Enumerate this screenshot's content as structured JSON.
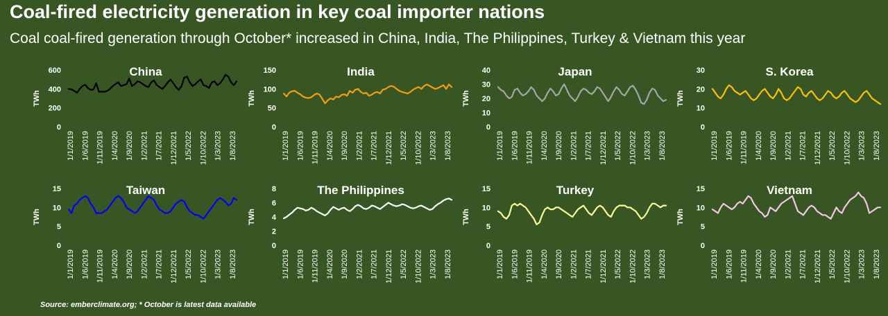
{
  "header": {
    "title": "Coal-fired electricity generation in key coal importer nations",
    "subtitle": "Coal coal-fired generation through October* increased in China, India, The Philippines, Turkey & Vietnam this year"
  },
  "footer": {
    "source": "Source: emberclimate.org; * October is latest data available"
  },
  "chart_data": [
    {
      "type": "line",
      "title": "China",
      "ylabel": "TWh",
      "color": "#000000",
      "ylim": [
        0,
        600
      ],
      "yticks": [
        0,
        200,
        400,
        600
      ],
      "x_ticks": [
        "1/1/2019",
        "1/6/2019",
        "1/11/2019",
        "1/4/2020",
        "1/9/2020",
        "1/2/2021",
        "1/7/2021",
        "1/12/2021",
        "1/5/2022",
        "1/10/2022",
        "1/3/2023",
        "1/8/2023"
      ],
      "values": [
        400,
        395,
        380,
        360,
        400,
        430,
        445,
        410,
        390,
        395,
        460,
        370,
        370,
        370,
        380,
        400,
        430,
        450,
        470,
        430,
        440,
        450,
        510,
        430,
        450,
        480,
        470,
        450,
        430,
        420,
        470,
        490,
        440,
        420,
        400,
        430,
        470,
        500,
        460,
        420,
        390,
        430,
        520,
        530,
        470,
        430,
        450,
        480,
        500,
        440,
        430,
        410,
        470,
        480,
        440,
        460,
        500,
        550,
        530,
        470,
        440,
        480
      ]
    },
    {
      "type": "line",
      "title": "India",
      "ylabel": "TWh",
      "color": "#F59E0B",
      "ylim": [
        0,
        150
      ],
      "yticks": [
        0,
        50,
        100,
        150
      ],
      "x_ticks": [
        "1/1/2019",
        "1/6/2019",
        "1/11/2019",
        "1/4/2020",
        "1/9/2020",
        "1/2/2021",
        "1/7/2021",
        "1/12/2021",
        "1/5/2022",
        "1/10/2022",
        "1/3/2023",
        "1/8/2023"
      ],
      "values": [
        88,
        80,
        90,
        94,
        95,
        90,
        86,
        80,
        77,
        76,
        78,
        84,
        88,
        85,
        74,
        62,
        70,
        75,
        72,
        80,
        78,
        84,
        86,
        82,
        95,
        90,
        98,
        100,
        92,
        88,
        90,
        82,
        85,
        90,
        92,
        88,
        98,
        100,
        105,
        108,
        106,
        100,
        95,
        92,
        90,
        88,
        92,
        98,
        102,
        105,
        100,
        108,
        112,
        108,
        104,
        100,
        102,
        106,
        110,
        100,
        112,
        105
      ]
    },
    {
      "type": "line",
      "title": "Japan",
      "ylabel": "TWh",
      "color": "#A6A6A6",
      "ylim": [
        0,
        40
      ],
      "yticks": [
        0,
        10,
        20,
        30,
        40
      ],
      "x_ticks": [
        "1/1/2019",
        "1/6/2019",
        "1/11/2019",
        "1/4/2020",
        "1/9/2020",
        "1/2/2021",
        "1/7/2021",
        "1/12/2021",
        "1/5/2022",
        "1/10/2022",
        "1/3/2023",
        "1/8/2023"
      ],
      "values": [
        28,
        26,
        25,
        22,
        20,
        21,
        26,
        27,
        24,
        22,
        23,
        25,
        28,
        26,
        22,
        20,
        18,
        20,
        24,
        27,
        25,
        22,
        23,
        27,
        30,
        26,
        22,
        20,
        18,
        21,
        25,
        27,
        26,
        24,
        23,
        25,
        28,
        27,
        24,
        21,
        18,
        21,
        25,
        28,
        26,
        23,
        22,
        25,
        28,
        29,
        26,
        22,
        17,
        16,
        19,
        24,
        27,
        26,
        22,
        20,
        18,
        19
      ]
    },
    {
      "type": "line",
      "title": "S. Korea",
      "ylabel": "TWh",
      "color": "#FFC000",
      "ylim": [
        0,
        30
      ],
      "yticks": [
        0,
        10,
        20,
        30
      ],
      "x_ticks": [
        "1/1/2019",
        "1/6/2019",
        "1/11/2019",
        "1/4/2020",
        "1/9/2020",
        "1/2/2021",
        "1/7/2021",
        "1/12/2021",
        "1/5/2022",
        "1/10/2022",
        "1/3/2023",
        "1/8/2023"
      ],
      "values": [
        20,
        18,
        16,
        15,
        17,
        20,
        22,
        21,
        19,
        18,
        17,
        18,
        19,
        17,
        15,
        14,
        15,
        17,
        19,
        20,
        18,
        16,
        15,
        17,
        20,
        18,
        15,
        14,
        15,
        17,
        19,
        21,
        20,
        17,
        16,
        18,
        19,
        17,
        15,
        14,
        15,
        17,
        19,
        18,
        16,
        15,
        16,
        18,
        19,
        17,
        15,
        14,
        13,
        14,
        16,
        18,
        19,
        17,
        15,
        14,
        13,
        12
      ]
    },
    {
      "type": "line",
      "title": "Taiwan",
      "ylabel": "TWh",
      "color": "#0000FF",
      "ylim": [
        0,
        15
      ],
      "yticks": [
        0,
        5,
        10,
        15
      ],
      "x_ticks": [
        "1/1/2019",
        "1/6/2019",
        "1/11/2019",
        "1/4/2020",
        "1/9/2020",
        "1/2/2021",
        "1/7/2021",
        "1/12/2021",
        "1/5/2022",
        "1/10/2022",
        "1/3/2023",
        "1/8/2023"
      ],
      "values": [
        9.5,
        8.5,
        10.5,
        11,
        12,
        12.5,
        13,
        12.5,
        11,
        10,
        8.5,
        8.5,
        8.5,
        9,
        9.5,
        10.5,
        11.5,
        12.5,
        13,
        12.5,
        11.5,
        10,
        9.5,
        9,
        8.5,
        9,
        10,
        11,
        12,
        13,
        12.5,
        12,
        10.5,
        9.5,
        9,
        8.5,
        8.5,
        9,
        10,
        11,
        11.5,
        12,
        11.5,
        10,
        9,
        8.5,
        8,
        8,
        7.5,
        7,
        8,
        9,
        10,
        11,
        12,
        12.5,
        12,
        11.5,
        10.5,
        11,
        12.5,
        12
      ]
    },
    {
      "type": "line",
      "title": "The Philippines",
      "ylabel": "TWh",
      "color": "#FFFFFF",
      "ylim": [
        0,
        8
      ],
      "yticks": [
        0,
        2,
        4,
        6,
        8
      ],
      "x_ticks": [
        "1/1/2019",
        "1/6/2019",
        "1/11/2019",
        "1/4/2020",
        "1/9/2020",
        "1/2/2021",
        "1/7/2021",
        "1/12/2021",
        "1/5/2022",
        "1/10/2022",
        "1/3/2023",
        "1/8/2023"
      ],
      "values": [
        3.8,
        4,
        4.3,
        4.6,
        5,
        5.3,
        5.2,
        5.1,
        4.9,
        5,
        5.3,
        5.1,
        4.8,
        4.6,
        4.4,
        4.2,
        4.5,
        5,
        5.4,
        5.2,
        5,
        5.2,
        5.3,
        5,
        4.8,
        5.1,
        5.5,
        5.7,
        5.5,
        5.2,
        5.1,
        5.3,
        5.6,
        5.5,
        5.3,
        5.1,
        5.4,
        5.7,
        6,
        5.8,
        5.6,
        5.5,
        5.6,
        5.8,
        5.7,
        5.5,
        5.3,
        5.2,
        5.3,
        5.5,
        5.6,
        5.4,
        5.2,
        5,
        5.1,
        5.5,
        5.8,
        6,
        6.3,
        6.5,
        6.6,
        6.4
      ]
    },
    {
      "type": "line",
      "title": "Turkey",
      "ylabel": "TWh",
      "color": "#FFFF99",
      "ylim": [
        0,
        15
      ],
      "yticks": [
        0,
        5,
        10,
        15
      ],
      "x_ticks": [
        "1/1/2019",
        "1/6/2019",
        "1/11/2019",
        "1/4/2020",
        "1/9/2020",
        "1/2/2021",
        "1/7/2021",
        "1/12/2021",
        "1/5/2022",
        "1/10/2022",
        "1/3/2023",
        "1/8/2023"
      ],
      "values": [
        9,
        8.5,
        7.5,
        7,
        8,
        10.5,
        11,
        10.5,
        11,
        10.5,
        10,
        9,
        8,
        7,
        5.5,
        6,
        8,
        9.5,
        10,
        9.5,
        9.5,
        10,
        10,
        9.5,
        9,
        8.5,
        8,
        7.5,
        8.5,
        9.5,
        10,
        10.5,
        9.5,
        8.5,
        8,
        9,
        10,
        10.5,
        10,
        9,
        8,
        7.5,
        9,
        10,
        10.5,
        10.5,
        10.5,
        10,
        10,
        9.5,
        9,
        8,
        7,
        7.5,
        8.5,
        10,
        11,
        11,
        10.5,
        10,
        10.5,
        10.5
      ]
    },
    {
      "type": "line",
      "title": "Vietnam",
      "ylabel": "TWh",
      "color": "#F4C6E7",
      "ylim": [
        0,
        15
      ],
      "yticks": [
        0,
        5,
        10,
        15
      ],
      "x_ticks": [
        "1/1/2019",
        "1/6/2019",
        "1/11/2019",
        "1/4/2020",
        "1/9/2020",
        "1/2/2021",
        "1/7/2021",
        "1/12/2021",
        "1/5/2022",
        "1/10/2022",
        "1/3/2023",
        "1/8/2023"
      ],
      "values": [
        9.5,
        9,
        8.5,
        10,
        11,
        10.5,
        10,
        9.5,
        10,
        11,
        11.5,
        11,
        12,
        13,
        12.5,
        11,
        10,
        9,
        8.5,
        7.5,
        8,
        10,
        9.5,
        9,
        10,
        11,
        11.5,
        12,
        12.5,
        13,
        11,
        9,
        8.5,
        8,
        9,
        10,
        10.5,
        10,
        9,
        8.5,
        8,
        8,
        7.5,
        7,
        8.5,
        10,
        9,
        8.5,
        10,
        11,
        12,
        12.5,
        13,
        14,
        13,
        12.5,
        11,
        8.5,
        9,
        9.5,
        10,
        10
      ]
    }
  ]
}
